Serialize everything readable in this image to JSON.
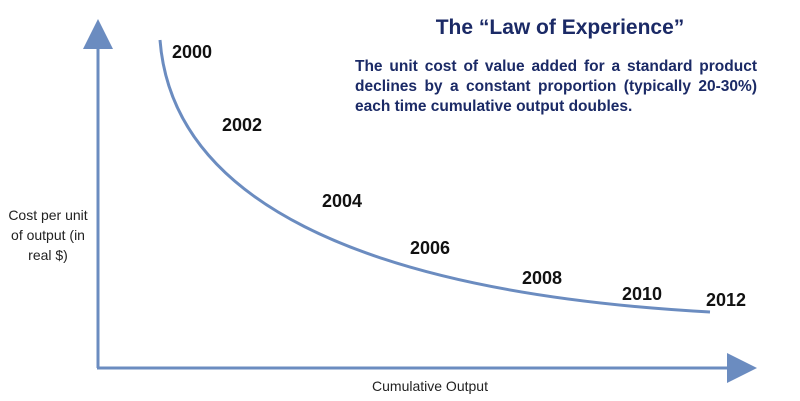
{
  "title": "The “Law of Experience”",
  "description": "The unit cost of value added for a standard product declines by a constant proportion (typically 20-30%) each time cumulative output doubles.",
  "y_axis_label": "Cost per unit of output (in real $)",
  "x_axis_label": "Cumulative Output",
  "curve_labels": [
    "2000",
    "2002",
    "2004",
    "2006",
    "2008",
    "2010",
    "2012"
  ],
  "colors": {
    "axis": "#6b8cc0",
    "curve": "#6b8cc0",
    "text_heading": "#1b2a66"
  }
}
